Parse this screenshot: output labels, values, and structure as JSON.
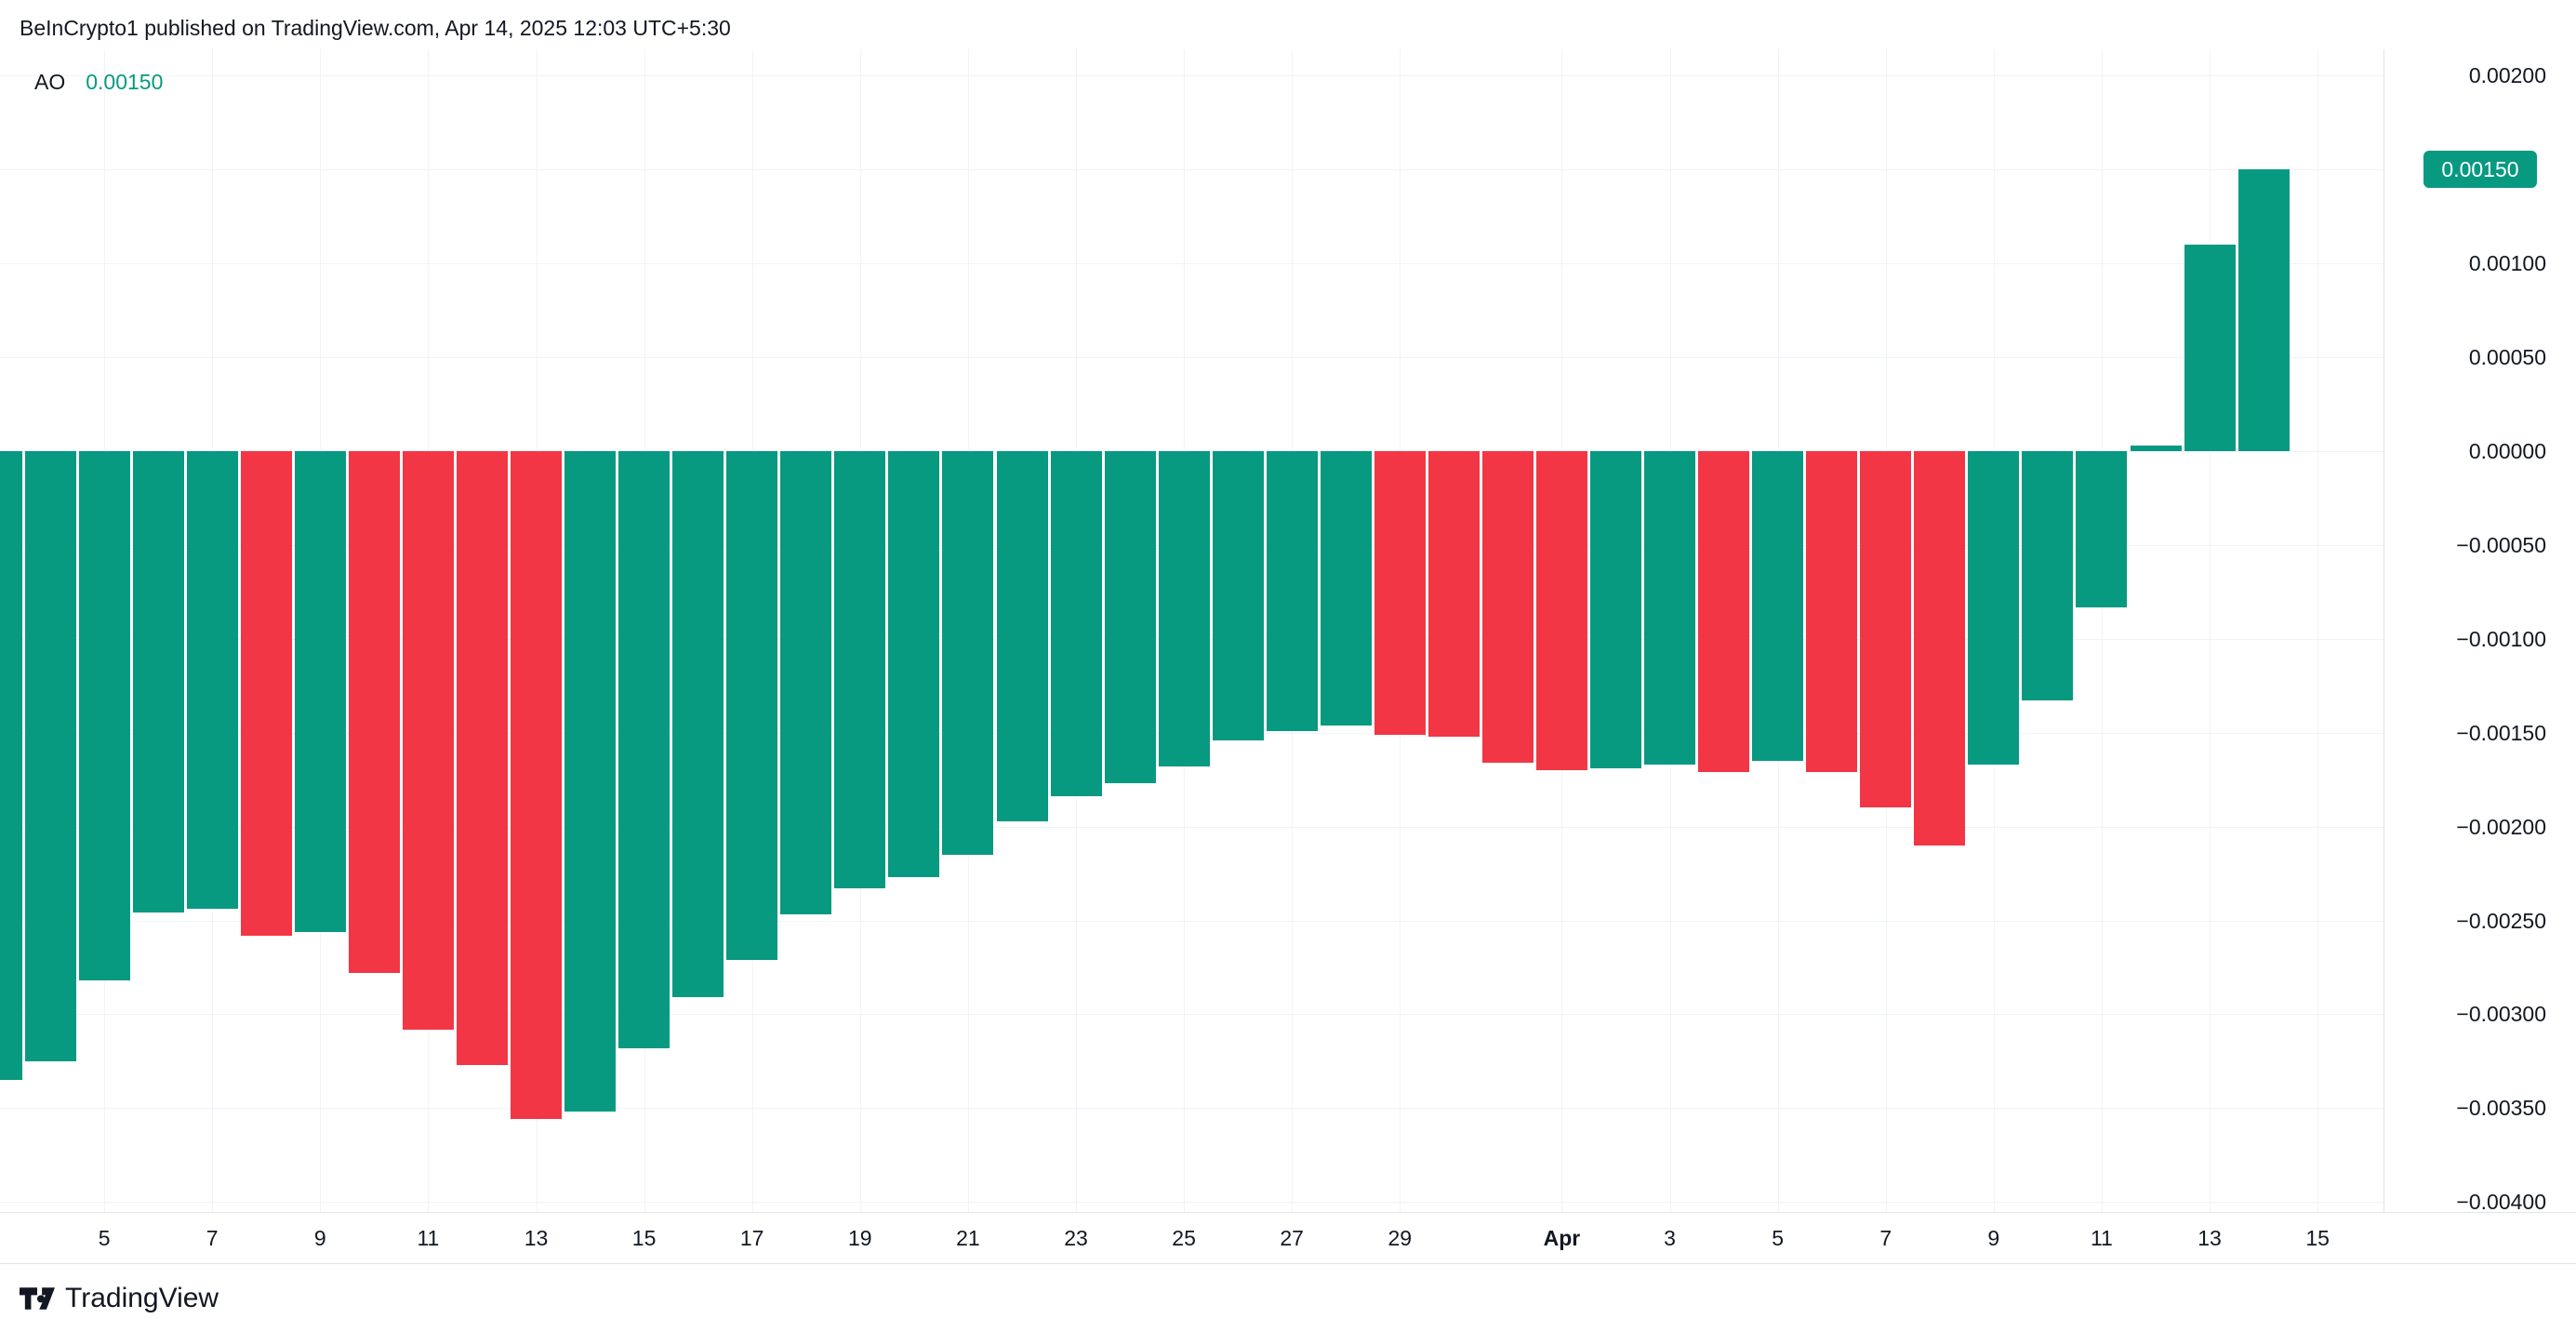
{
  "header": {
    "attribution": "BeInCrypto1 published on TradingView.com, Apr 14, 2025 12:03 UTC+5:30"
  },
  "legend": {
    "indicator": "AO",
    "value": "0.00150"
  },
  "price_axis": {
    "badge": {
      "label": "0.00150",
      "value": 0.0015
    },
    "ticks": [
      {
        "label": "0.00200",
        "value": 0.002
      },
      {
        "label": "0.00100",
        "value": 0.001
      },
      {
        "label": "0.00050",
        "value": 0.0005
      },
      {
        "label": "0.00000",
        "value": 0.0
      },
      {
        "label": "−0.00050",
        "value": -0.0005
      },
      {
        "label": "−0.00100",
        "value": -0.001
      },
      {
        "label": "−0.00150",
        "value": -0.0015
      },
      {
        "label": "−0.00200",
        "value": -0.002
      },
      {
        "label": "−0.00250",
        "value": -0.0025
      },
      {
        "label": "−0.00300",
        "value": -0.003
      },
      {
        "label": "−0.00350",
        "value": -0.0035
      },
      {
        "label": "−0.00400",
        "value": -0.004
      }
    ]
  },
  "time_axis": {
    "ticks": [
      {
        "label": "5",
        "index": 2
      },
      {
        "label": "7",
        "index": 4
      },
      {
        "label": "9",
        "index": 6
      },
      {
        "label": "11",
        "index": 8
      },
      {
        "label": "13",
        "index": 10
      },
      {
        "label": "15",
        "index": 12
      },
      {
        "label": "17",
        "index": 14
      },
      {
        "label": "19",
        "index": 16
      },
      {
        "label": "21",
        "index": 18
      },
      {
        "label": "23",
        "index": 20
      },
      {
        "label": "25",
        "index": 22
      },
      {
        "label": "27",
        "index": 24
      },
      {
        "label": "29",
        "index": 26
      },
      {
        "label": "Apr",
        "index": 29,
        "bold": true
      },
      {
        "label": "3",
        "index": 31
      },
      {
        "label": "5",
        "index": 33
      },
      {
        "label": "7",
        "index": 35
      },
      {
        "label": "9",
        "index": 37
      },
      {
        "label": "11",
        "index": 39
      },
      {
        "label": "13",
        "index": 41
      },
      {
        "label": "15",
        "index": 43
      }
    ]
  },
  "footer": {
    "brand": "TradingView"
  },
  "theme": {
    "up_color": "#089981",
    "down_color": "#F23645",
    "text_color": "#131722",
    "grid_color": "#F0F3FA",
    "border_color": "#E0E3EB",
    "badge_bg": "#089981",
    "badge_text": "#FFFFFF",
    "background": "#FFFFFF"
  },
  "chart_data": {
    "type": "bar",
    "title": "AO (Awesome Oscillator) histogram",
    "xlabel": "",
    "ylabel": "",
    "ylim": [
      -0.004,
      0.002
    ],
    "grid_step": 0.0005,
    "grid": true,
    "legend_position": "top-left",
    "current_value": 0.0015,
    "categories": [
      "Mar 3",
      "Mar 4",
      "Mar 5",
      "Mar 6",
      "Mar 7",
      "Mar 8",
      "Mar 9",
      "Mar 10",
      "Mar 11",
      "Mar 12",
      "Mar 13",
      "Mar 14",
      "Mar 15",
      "Mar 16",
      "Mar 17",
      "Mar 18",
      "Mar 19",
      "Mar 20",
      "Mar 21",
      "Mar 22",
      "Mar 23",
      "Mar 24",
      "Mar 25",
      "Mar 26",
      "Mar 27",
      "Mar 28",
      "Mar 29",
      "Mar 30",
      "Mar 31",
      "Apr 1",
      "Apr 2",
      "Apr 3",
      "Apr 4",
      "Apr 5",
      "Apr 6",
      "Apr 7",
      "Apr 8",
      "Apr 9",
      "Apr 10",
      "Apr 11",
      "Apr 12",
      "Apr 13",
      "Apr 14"
    ],
    "values": [
      -0.00335,
      -0.00325,
      -0.00282,
      -0.00246,
      -0.00244,
      -0.00258,
      -0.00256,
      -0.00278,
      -0.00308,
      -0.00327,
      -0.00356,
      -0.00352,
      -0.00318,
      -0.00291,
      -0.00271,
      -0.00247,
      -0.00233,
      -0.00227,
      -0.00215,
      -0.00197,
      -0.00184,
      -0.00177,
      -0.00168,
      -0.00154,
      -0.00149,
      -0.00146,
      -0.00151,
      -0.00152,
      -0.00166,
      -0.0017,
      -0.00169,
      -0.00167,
      -0.00171,
      -0.00165,
      -0.00171,
      -0.0019,
      -0.0021,
      -0.00167,
      -0.00133,
      -0.00083,
      3e-05,
      0.0011,
      0.0015
    ],
    "directions": [
      "up",
      "up",
      "up",
      "up",
      "up",
      "down",
      "up",
      "down",
      "down",
      "down",
      "down",
      "up",
      "up",
      "up",
      "up",
      "up",
      "up",
      "up",
      "up",
      "up",
      "up",
      "up",
      "up",
      "up",
      "up",
      "up",
      "down",
      "down",
      "down",
      "down",
      "up",
      "up",
      "down",
      "up",
      "down",
      "down",
      "down",
      "up",
      "up",
      "up",
      "up",
      "up",
      "up"
    ]
  }
}
